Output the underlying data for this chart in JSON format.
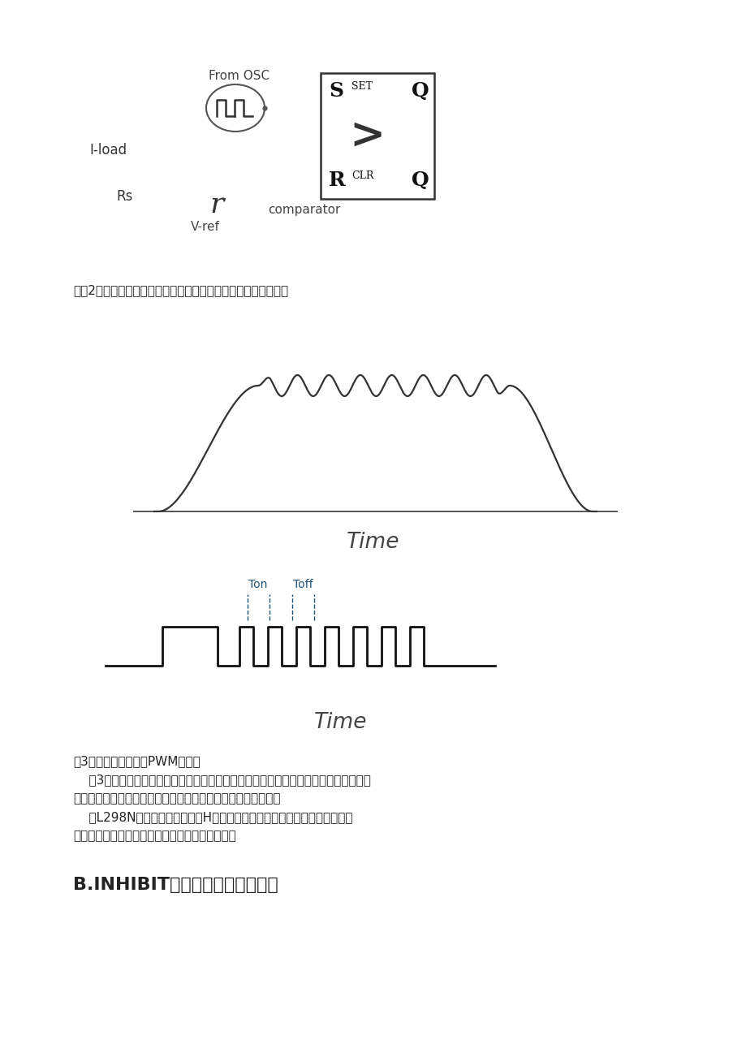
{
  "bg_color": "#ffffff",
  "fig_caption": "图。2。电路包含触发器，振荡器和一个用于电流控制的比测仪。",
  "time_label1": "Time",
  "time_label2": "Time",
  "ton_label": "Ton",
  "toff_label": "Toff",
  "from_osc": "From OSC",
  "i_load": "I-load",
  "rs_label": "Rs",
  "r_label": "r",
  "v_ref": "V-ref",
  "comparator": "comparator",
  "fig3_title": "图3。控制电流的电压PWM操作图",
  "fig3_para1a": "    图3显示了通过电机的电流如何被控制。当电动机电流超出设定值时，应用于电机末端",
  "fig3_para1b": "的电压将被切断。因此，电流会衰减，最终电机电流可被控制。",
  "fig3_para2a": "    该L298N是单片电路包含两个H桥，此外，较低晶体管的发射极连接被带到",
  "fig3_para2b": "夕卜端接口，使外部感应电阻器的电流连接起来。",
  "section_title": "B.INHIBIT电路模式中的电流控制"
}
